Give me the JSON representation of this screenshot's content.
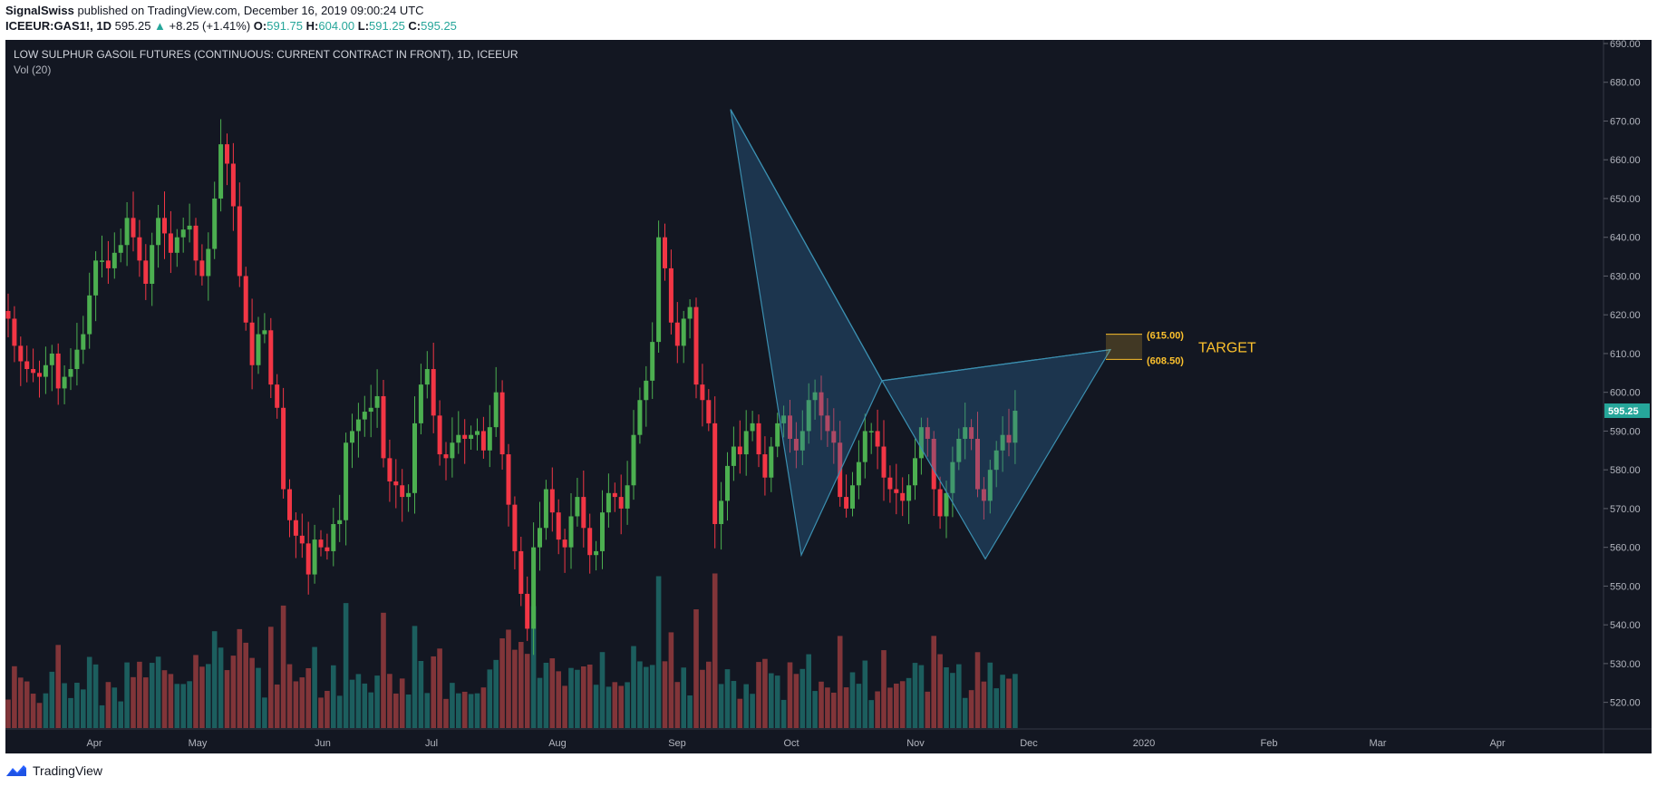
{
  "header": {
    "publisher": "SignalSwiss",
    "published_text": "published on TradingView.com, December 16, 2019 09:00:24 UTC",
    "symbol": "ICEEUR:GAS1!, 1D",
    "last": "595.25",
    "change_arrow": "▲",
    "change": "+8.25 (+1.41%)",
    "o_label": "O:",
    "o_value": "591.75",
    "h_label": "H:",
    "h_value": "604.00",
    "l_label": "L:",
    "l_value": "591.25",
    "c_label": "C:",
    "c_value": "595.25"
  },
  "footer": {
    "brand": "TradingView",
    "icon": "tradingview-logo-icon"
  },
  "colors": {
    "background": "#131722",
    "up": "#26a69a",
    "down": "#ef5350",
    "candle_up": "#4caf50",
    "candle_down": "#f23645",
    "pattern": "#2f6a87",
    "target_box": "#fbc02d"
  },
  "chart_data": {
    "type": "candlestick",
    "title": "LOW SULPHUR GASOIL FUTURES (CONTINUOUS: CURRENT CONTRACT IN FRONT), 1D, ICEEUR",
    "subtitle": "Vol (20)",
    "ylim": [
      515,
      690
    ],
    "y_ticks": [
      "520.00",
      "530.00",
      "540.00",
      "550.00",
      "560.00",
      "570.00",
      "580.00",
      "590.00",
      "600.00",
      "610.00",
      "620.00",
      "630.00",
      "640.00",
      "650.00",
      "660.00",
      "670.00",
      "680.00",
      "690.00"
    ],
    "x_ticks": [
      "Apr",
      "May",
      "Jun",
      "Jul",
      "Aug",
      "Sep",
      "Oct",
      "Nov",
      "Dec",
      "2020",
      "Feb",
      "Mar",
      "Apr"
    ],
    "last_price_label": "595.25",
    "grid": false,
    "closes": [
      619,
      612,
      608,
      606,
      605,
      604,
      607,
      610,
      601,
      604,
      606,
      611,
      615,
      625,
      634,
      634,
      632,
      636,
      638,
      645,
      640,
      634,
      628,
      638,
      645,
      641,
      636,
      640,
      642,
      643,
      634,
      630,
      637,
      650,
      664,
      659,
      648,
      630,
      618,
      607,
      615,
      616,
      602,
      596,
      575,
      567,
      563,
      561,
      553,
      562,
      560,
      559,
      566,
      567,
      587,
      590,
      593,
      595,
      596,
      599,
      583,
      577,
      576,
      573,
      574,
      592,
      602,
      606,
      594,
      584,
      583,
      587,
      589,
      588,
      589,
      590,
      585,
      591,
      600,
      584,
      571,
      559,
      548,
      539,
      560,
      565,
      575,
      569,
      562,
      560,
      568,
      573,
      565,
      558,
      559,
      569,
      574,
      573,
      570,
      576,
      589,
      598,
      603,
      613,
      640,
      632,
      618,
      612,
      619,
      622,
      602,
      598,
      592,
      566,
      572,
      581,
      586,
      584,
      590,
      592,
      584,
      578,
      586,
      592,
      594,
      588,
      585,
      590,
      598,
      600,
      594,
      590,
      587,
      573,
      570,
      576,
      582,
      590,
      590,
      586,
      578,
      575,
      574,
      572,
      576,
      583,
      591,
      588,
      575,
      568,
      574,
      582,
      588,
      591,
      588,
      575,
      572,
      580,
      585,
      589,
      587,
      595.25
    ],
    "volume_scale": "relative",
    "pattern": {
      "name": "bearish harmonic",
      "points": [
        [
          0,
          673
        ],
        [
          1,
          558
        ],
        [
          2,
          603
        ],
        [
          3,
          557
        ],
        [
          4,
          611
        ]
      ]
    },
    "target": {
      "high": "(615.00)",
      "low": "(608.50)",
      "high_value": 615,
      "low_value": 608.5,
      "text": "TARGET"
    }
  }
}
